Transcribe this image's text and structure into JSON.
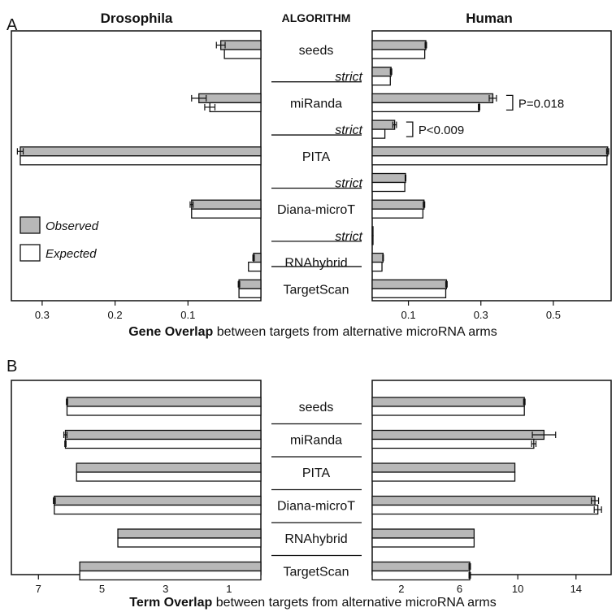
{
  "panel_a_letter": "A",
  "panel_b_letter": "B",
  "colors": {
    "observed": "#b8b8b8",
    "expected": "#ffffff",
    "stroke": "#111111"
  },
  "chart_data": [
    {
      "type": "bar",
      "panel": "A",
      "orientation": "horizontal-mirrored",
      "left_title": "Drosophila",
      "center_title": "ALGORITHM",
      "right_title": "Human",
      "xlabel_bold": "Gene Overlap",
      "xlabel_rest": " between targets from alternative microRNA arms",
      "categories": [
        "seeds",
        "strict",
        "miRanda",
        "strict",
        "PITA",
        "strict",
        "Diana-microT",
        "strict",
        "RNAhybrid",
        "TargetScan"
      ],
      "italic_categories": [
        1,
        3,
        5,
        7
      ],
      "legend": [
        "Observed",
        "Expected"
      ],
      "left": {
        "xlim": [
          0.34,
          0
        ],
        "ticks": [
          0.3,
          0.2,
          0.1
        ],
        "tick_labels": [
          "0.3",
          "0.2",
          "0.1"
        ],
        "observed": [
          0.055,
          null,
          0.085,
          null,
          0.33,
          null,
          0.095,
          null,
          0.01,
          0.03
        ],
        "observed_err": [
          0.006,
          null,
          0.01,
          null,
          0.004,
          null,
          0.002,
          null,
          0.001,
          0.001
        ],
        "expected": [
          0.05,
          null,
          0.07,
          null,
          0.33,
          null,
          0.095,
          null,
          0.017,
          0.03
        ],
        "expected_err": [
          0,
          null,
          0.007,
          null,
          0,
          null,
          0,
          null,
          0,
          0
        ]
      },
      "right": {
        "xlim": [
          0,
          0.655
        ],
        "ticks": [
          0.1,
          0.3,
          0.5
        ],
        "tick_labels": [
          "0.1",
          "0.3",
          "0.5"
        ],
        "observed": [
          0.148,
          0.052,
          0.333,
          0.062,
          0.65,
          0.092,
          0.143,
          0.002,
          0.03,
          0.205
        ],
        "observed_err": [
          0.002,
          0.002,
          0.01,
          0.005,
          0.003,
          0.001,
          0.002,
          0,
          0.001,
          0.002
        ],
        "expected": [
          0.145,
          0.05,
          0.295,
          0.035,
          0.648,
          0.09,
          0.14,
          0.002,
          0.027,
          0.203
        ],
        "expected_err": [
          0,
          0,
          0.002,
          0,
          0,
          0,
          0,
          0,
          0,
          0
        ]
      },
      "annotations": [
        {
          "text": "P=0.018",
          "category_index": 2
        },
        {
          "text": "P<0.009",
          "category_index": 3
        }
      ]
    },
    {
      "type": "bar",
      "panel": "B",
      "orientation": "horizontal-mirrored",
      "xlabel_bold": "Term Overlap",
      "xlabel_rest": " between targets from alternative microRNA arms",
      "categories": [
        "seeds",
        "miRanda",
        "PITA",
        "Diana-microT",
        "RNAhybrid",
        "TargetScan"
      ],
      "left": {
        "xlim": [
          7.8,
          0
        ],
        "ticks": [
          7,
          5,
          3,
          1
        ],
        "tick_labels": [
          "7",
          "5",
          "3",
          "1"
        ],
        "observed": [
          6.1,
          6.15,
          5.8,
          6.5,
          4.5,
          5.7
        ],
        "observed_err": [
          0.02,
          0.05,
          0,
          0.03,
          0,
          0
        ],
        "expected": [
          6.1,
          6.15,
          5.8,
          6.5,
          4.5,
          5.7
        ],
        "expected_err": [
          0,
          0.02,
          0,
          0,
          0,
          0
        ]
      },
      "right": {
        "xlim": [
          0,
          16.3
        ],
        "ticks": [
          2,
          6,
          10,
          14
        ],
        "tick_labels": [
          "2",
          "6",
          "10",
          "14"
        ],
        "observed": [
          10.45,
          11.8,
          9.8,
          15.3,
          7.0,
          6.7
        ],
        "observed_err": [
          0.05,
          0.8,
          0,
          0.25,
          0,
          0.05
        ],
        "expected": [
          10.45,
          11.1,
          9.8,
          15.5,
          7.0,
          6.7
        ],
        "expected_err": [
          0,
          0.15,
          0,
          0.25,
          0,
          0.05
        ]
      }
    }
  ]
}
